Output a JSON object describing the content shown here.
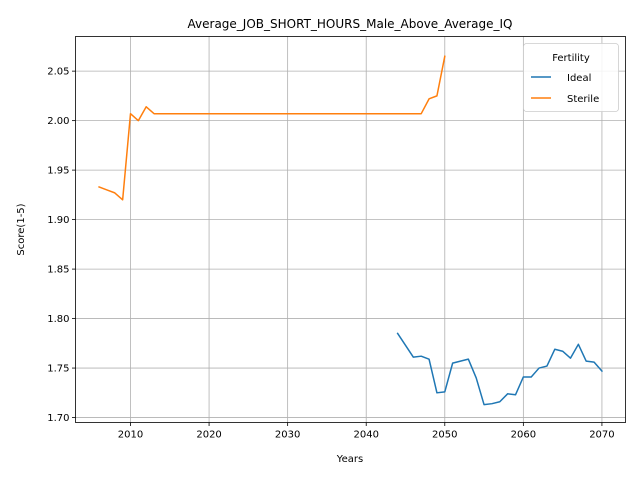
{
  "chart_data": {
    "type": "line",
    "title": "Average_JOB_SHORT_HOURS_Male_Above_Average_IQ",
    "xlabel": "Years",
    "ylabel": "Score(1-5)",
    "xlim": [
      2003,
      2073
    ],
    "ylim": [
      1.695,
      2.085
    ],
    "xticks": [
      2010,
      2020,
      2030,
      2040,
      2050,
      2060,
      2070
    ],
    "yticks": [
      1.7,
      1.75,
      1.8,
      1.85,
      1.9,
      1.95,
      2.0,
      2.05
    ],
    "ytick_labels": [
      "1.70",
      "1.75",
      "1.80",
      "1.85",
      "1.90",
      "1.95",
      "2.00",
      "2.05"
    ],
    "grid": true,
    "legend": {
      "title": "Fertility",
      "position": "top-right"
    },
    "series": [
      {
        "name": "Ideal",
        "color": "#1f77b4",
        "points": [
          [
            2044,
            1.785
          ],
          [
            2045,
            1.773
          ],
          [
            2046,
            1.761
          ],
          [
            2047,
            1.762
          ],
          [
            2048,
            1.759
          ],
          [
            2049,
            1.725
          ],
          [
            2050,
            1.726
          ],
          [
            2051,
            1.755
          ],
          [
            2052,
            1.757
          ],
          [
            2053,
            1.759
          ],
          [
            2054,
            1.74
          ],
          [
            2055,
            1.713
          ],
          [
            2056,
            1.714
          ],
          [
            2057,
            1.716
          ],
          [
            2058,
            1.724
          ],
          [
            2059,
            1.723
          ],
          [
            2060,
            1.741
          ],
          [
            2061,
            1.741
          ],
          [
            2062,
            1.75
          ],
          [
            2063,
            1.752
          ],
          [
            2064,
            1.769
          ],
          [
            2065,
            1.767
          ],
          [
            2066,
            1.76
          ],
          [
            2067,
            1.774
          ],
          [
            2068,
            1.757
          ],
          [
            2069,
            1.756
          ],
          [
            2070,
            1.747
          ]
        ]
      },
      {
        "name": "Sterile",
        "color": "#ff7f0e",
        "points": [
          [
            2006,
            1.933
          ],
          [
            2007,
            1.93
          ],
          [
            2008,
            1.927
          ],
          [
            2009,
            1.92
          ],
          [
            2010,
            2.007
          ],
          [
            2011,
            2.0
          ],
          [
            2012,
            2.014
          ],
          [
            2013,
            2.007
          ],
          [
            2014,
            2.007
          ],
          [
            2015,
            2.007
          ],
          [
            2020,
            2.007
          ],
          [
            2025,
            2.007
          ],
          [
            2030,
            2.007
          ],
          [
            2035,
            2.007
          ],
          [
            2040,
            2.007
          ],
          [
            2045,
            2.007
          ],
          [
            2046,
            2.007
          ],
          [
            2047,
            2.007
          ],
          [
            2048,
            2.022
          ],
          [
            2049,
            2.025
          ],
          [
            2050,
            2.065
          ]
        ]
      }
    ]
  }
}
